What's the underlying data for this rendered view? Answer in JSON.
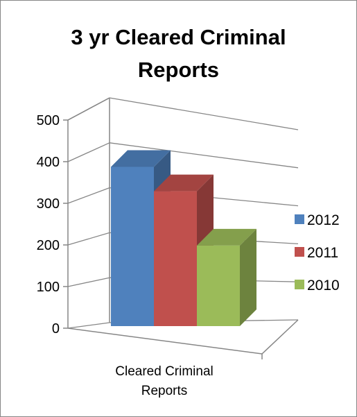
{
  "chart_data": {
    "type": "bar",
    "title_lines": [
      "3 yr Cleared Criminal",
      "Reports"
    ],
    "categories": [
      "Cleared Criminal Reports"
    ],
    "category_label_lines": [
      "Cleared Criminal",
      "Reports"
    ],
    "series": [
      {
        "name": "2012",
        "values": [
          425
        ],
        "color": "#4F81BD"
      },
      {
        "name": "2011",
        "values": [
          360
        ],
        "color": "#C0504D"
      },
      {
        "name": "2010",
        "values": [
          215
        ],
        "color": "#9BBB59"
      }
    ],
    "yticks": [
      "0",
      "100",
      "200",
      "300",
      "400",
      "500"
    ],
    "ylim": [
      0,
      500
    ],
    "grid": true,
    "legend_position": "right",
    "style": "3d-column"
  }
}
